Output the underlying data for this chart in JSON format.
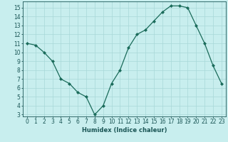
{
  "x": [
    0,
    1,
    2,
    3,
    4,
    5,
    6,
    7,
    8,
    9,
    10,
    11,
    12,
    13,
    14,
    15,
    16,
    17,
    18,
    19,
    20,
    21,
    22,
    23
  ],
  "y": [
    11,
    10.8,
    10,
    9,
    7,
    6.5,
    5.5,
    5,
    3,
    4,
    6.5,
    8,
    10.5,
    12,
    12.5,
    13.5,
    14.5,
    15.2,
    15.2,
    15,
    13,
    11,
    8.5,
    6.5
  ],
  "line_color": "#1a6b5a",
  "marker_color": "#1a6b5a",
  "bg_color": "#c8eeee",
  "grid_color": "#a8d8d8",
  "xlabel": "Humidex (Indice chaleur)",
  "xlim_min": -0.5,
  "xlim_max": 23.5,
  "ylim_min": 2.8,
  "ylim_max": 15.7,
  "yticks": [
    3,
    4,
    5,
    6,
    7,
    8,
    9,
    10,
    11,
    12,
    13,
    14,
    15
  ],
  "xticks": [
    0,
    1,
    2,
    3,
    4,
    5,
    6,
    7,
    8,
    9,
    10,
    11,
    12,
    13,
    14,
    15,
    16,
    17,
    18,
    19,
    20,
    21,
    22,
    23
  ],
  "tick_label_color": "#1a5555",
  "axis_color": "#1a5555",
  "xlabel_fontsize": 6.0,
  "tick_fontsize": 5.5,
  "linewidth": 0.9,
  "markersize": 2.0
}
